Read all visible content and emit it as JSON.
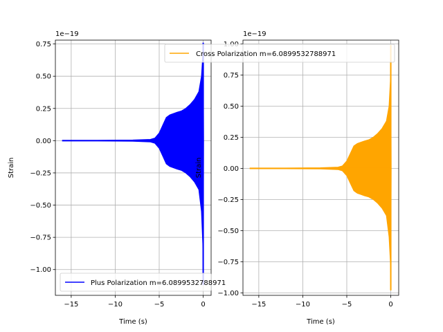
{
  "chart_data": [
    {
      "type": "line",
      "xlabel": "Time (s)",
      "ylabel": "Strain",
      "offset_text": "1e−19",
      "xlim": [
        -16.8,
        0.9
      ],
      "ylim": [
        -1.2,
        0.78
      ],
      "xticks": [
        -15,
        -10,
        -5,
        0
      ],
      "xtick_labels": [
        "−15",
        "−10",
        "−5",
        "0"
      ],
      "yticks": [
        -1.0,
        -0.75,
        -0.5,
        -0.25,
        0.0,
        0.25,
        0.5,
        0.75
      ],
      "ytick_labels": [
        "−1.00",
        "−0.75",
        "−0.50",
        "−0.25",
        "0.00",
        "0.25",
        "0.50",
        "0.75"
      ],
      "grid": true,
      "legend_position": "lower-left",
      "series": [
        {
          "name": "Plus Polarization m=6.0899532788971",
          "color": "#0000ff",
          "envelope": {
            "x": [
              -16,
              -12,
              -8,
              -6,
              -5.5,
              -5,
              -4.6,
              -4.2,
              -3.8,
              -3.4,
              -3,
              -2.5,
              -2,
              -1.5,
              -1,
              -0.5,
              -0.2,
              -0.05,
              0,
              0.05
            ],
            "upper": [
              0.003,
              0.003,
              0.005,
              0.01,
              0.02,
              0.06,
              0.12,
              0.18,
              0.2,
              0.21,
              0.22,
              0.23,
              0.25,
              0.28,
              0.32,
              0.38,
              0.5,
              0.66,
              0.76,
              0.0
            ],
            "lower": [
              -0.003,
              -0.003,
              -0.005,
              -0.01,
              -0.02,
              -0.06,
              -0.12,
              -0.18,
              -0.2,
              -0.21,
              -0.22,
              -0.23,
              -0.25,
              -0.28,
              -0.32,
              -0.38,
              -0.55,
              -0.8,
              -1.12,
              0.0
            ]
          }
        }
      ]
    },
    {
      "type": "line",
      "xlabel": "Time (s)",
      "ylabel": "Strain",
      "offset_text": "1e−19",
      "xlim": [
        -16.8,
        0.9
      ],
      "ylim": [
        -1.02,
        1.03
      ],
      "xticks": [
        -15,
        -10,
        -5,
        0
      ],
      "xtick_labels": [
        "−15",
        "−10",
        "−5",
        "0"
      ],
      "yticks": [
        -1.0,
        -0.75,
        -0.5,
        -0.25,
        0.0,
        0.25,
        0.5,
        0.75,
        1.0
      ],
      "ytick_labels": [
        "−1.00",
        "−0.75",
        "−0.50",
        "−0.25",
        "0.00",
        "0.25",
        "0.50",
        "0.75",
        "1.00"
      ],
      "grid": true,
      "legend_position": "top-right",
      "series": [
        {
          "name": "Cross Polarization m=6.0899532788971",
          "color": "#ffa500",
          "envelope": {
            "x": [
              -16,
              -12,
              -8,
              -6,
              -5.5,
              -5,
              -4.6,
              -4.2,
              -3.8,
              -3.4,
              -3,
              -2.5,
              -2,
              -1.5,
              -1,
              -0.5,
              -0.2,
              -0.05,
              0,
              0.05
            ],
            "upper": [
              0.003,
              0.003,
              0.005,
              0.01,
              0.02,
              0.06,
              0.12,
              0.18,
              0.2,
              0.21,
              0.22,
              0.23,
              0.25,
              0.28,
              0.32,
              0.38,
              0.5,
              0.7,
              0.99,
              0.0
            ],
            "lower": [
              -0.003,
              -0.003,
              -0.005,
              -0.01,
              -0.02,
              -0.06,
              -0.12,
              -0.18,
              -0.2,
              -0.21,
              -0.22,
              -0.23,
              -0.25,
              -0.28,
              -0.32,
              -0.38,
              -0.55,
              -0.75,
              -0.98,
              0.0
            ]
          }
        }
      ]
    }
  ]
}
